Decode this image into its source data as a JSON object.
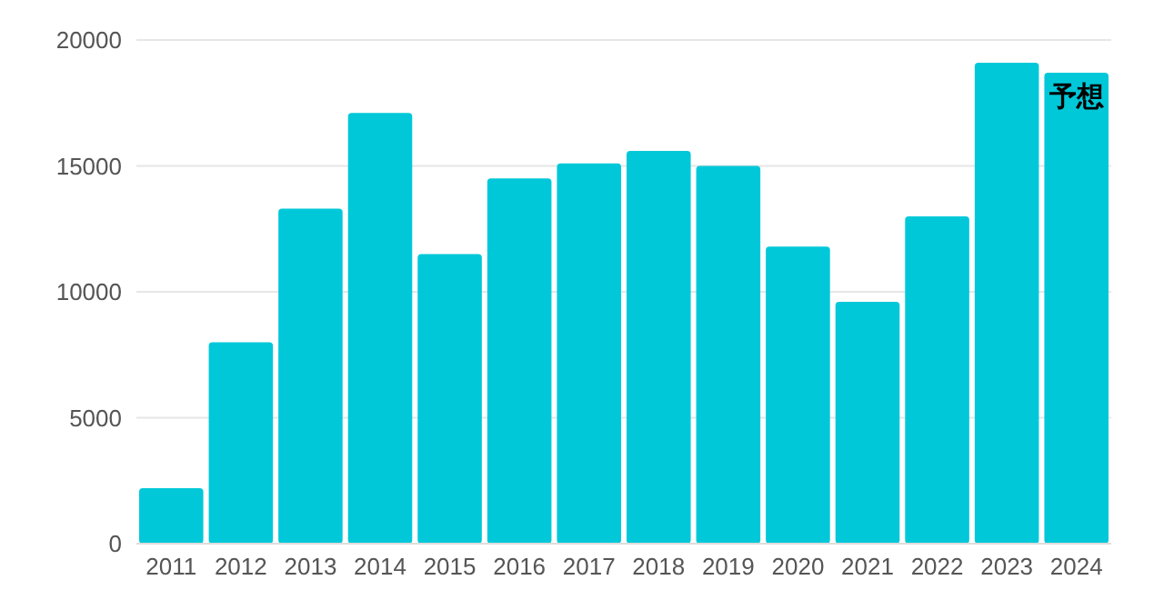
{
  "chart_data": {
    "type": "bar",
    "categories": [
      "2011",
      "2012",
      "2013",
      "2014",
      "2015",
      "2016",
      "2017",
      "2018",
      "2019",
      "2020",
      "2021",
      "2022",
      "2023",
      "2024"
    ],
    "values": [
      2200,
      8000,
      13300,
      17100,
      11500,
      14500,
      15100,
      15600,
      15000,
      11800,
      9600,
      13000,
      19100,
      18700
    ],
    "color": "#00c8d9",
    "ylim": [
      0,
      20000
    ],
    "yticks": [
      0,
      5000,
      10000,
      15000,
      20000
    ],
    "grid": "y",
    "annotations": [
      {
        "text": "予想",
        "x": "2024",
        "y": 18700
      }
    ]
  }
}
